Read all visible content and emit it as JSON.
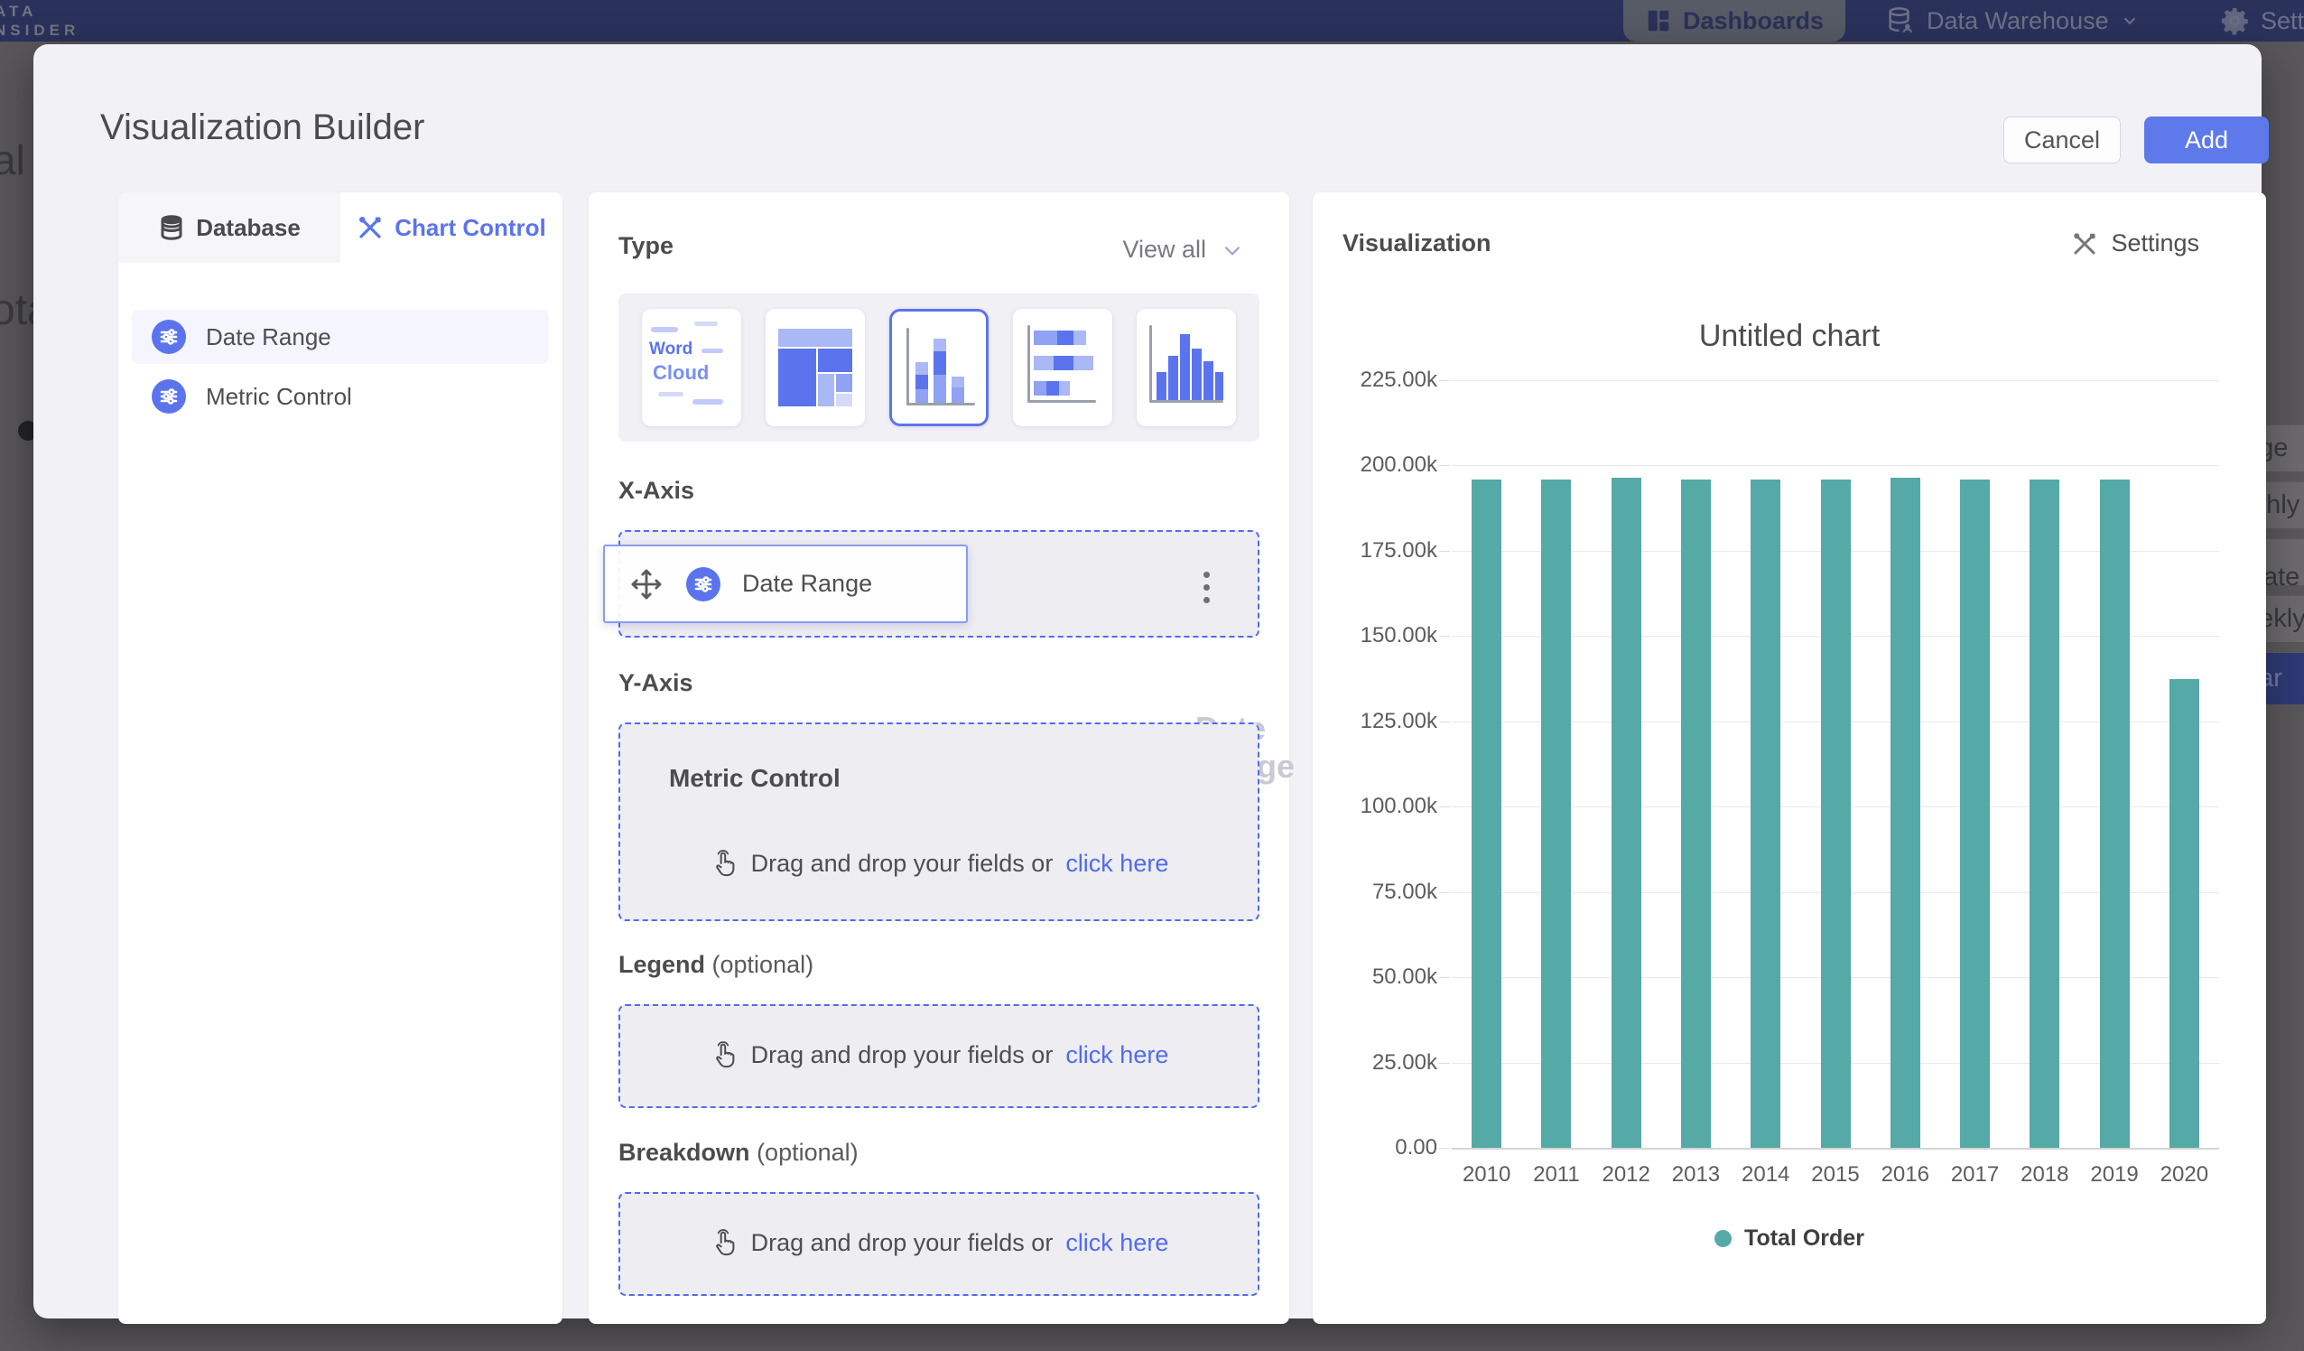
{
  "colors": {
    "accent_blue": "#5b74ee",
    "add_button_blue": "#5d79ea",
    "link_blue": "#4f6bf0",
    "bar_teal": "#55a9a6",
    "navbar_navy": "#2a325c"
  },
  "background": {
    "logo_line1": "ATA",
    "logo_line2": "NSIDER",
    "nav_dashboards": "Dashboards",
    "nav_data_warehouse": "Data Warehouse",
    "nav_settings_partial": "Setti",
    "left_fragment_1": "al",
    "left_fragment_2": "ota",
    "right_fragments": [
      "nge",
      "nthly",
      "k Date",
      "eekly",
      "ear"
    ]
  },
  "modal": {
    "title": "Visualization Builder",
    "cancel_label": "Cancel",
    "add_label": "Add"
  },
  "left_panel": {
    "tabs": [
      {
        "label": "Database"
      },
      {
        "label": "Chart Control"
      }
    ],
    "fields": [
      {
        "label": "Date Range"
      },
      {
        "label": "Metric Control"
      }
    ]
  },
  "builder": {
    "type_label": "Type",
    "view_all": "View all",
    "thumbnails": {
      "wordcloud_word1": "Word",
      "wordcloud_word2": "Cloud"
    },
    "x_axis_label": "X-Axis",
    "x_chip_label": "Date Range",
    "y_axis_label": "Y-Axis",
    "y_box_title": "Metric Control",
    "drop_text": "Drag and drop your fields or",
    "drop_link": "click here",
    "legend_label": "Legend",
    "breakdown_label": "Breakdown",
    "optional_suffix": "(optional)"
  },
  "viz_panel": {
    "title": "Visualization",
    "settings_label": "Settings"
  },
  "chart_data": {
    "type": "bar",
    "title": "Untitled chart",
    "categories": [
      "2010",
      "2011",
      "2012",
      "2013",
      "2014",
      "2015",
      "2016",
      "2017",
      "2018",
      "2019",
      "2020"
    ],
    "series": [
      {
        "name": "Total Order",
        "values_thousands": [
          195.8,
          195.9,
          196.3,
          195.8,
          195.9,
          195.9,
          196.3,
          196.0,
          195.9,
          196.0,
          137.5
        ]
      }
    ],
    "ylim_thousands": [
      0,
      225
    ],
    "ytick_step_thousands": 25,
    "yticks": [
      "0.00",
      "25.00k",
      "50.00k",
      "75.00k",
      "100.00k",
      "125.00k",
      "150.00k",
      "175.00k",
      "200.00k",
      "225.00k"
    ],
    "grid": "horizontal",
    "legend_position": "bottom",
    "bar_color": "#55a9a6"
  }
}
